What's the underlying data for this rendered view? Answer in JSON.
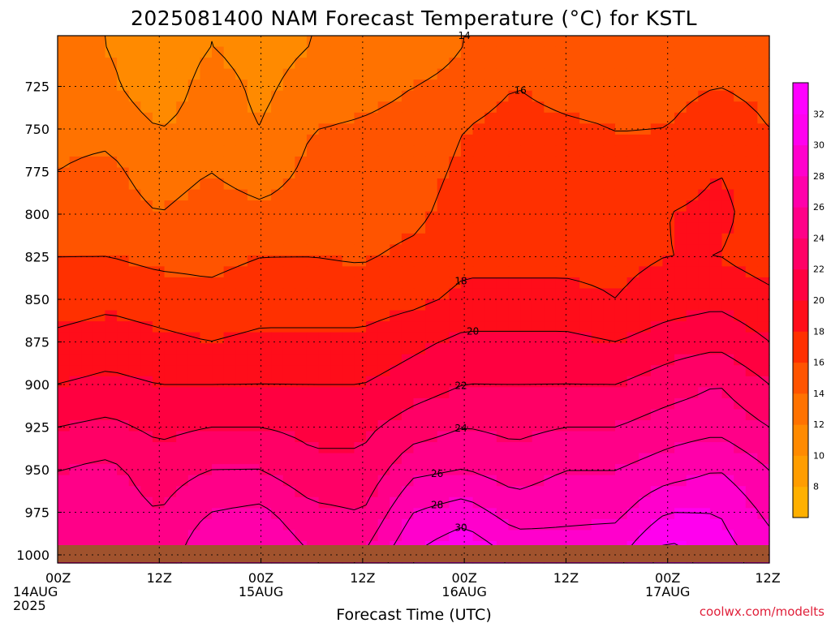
{
  "chart_data": {
    "type": "heatmap",
    "title": "2025081400 NAM Forecast Temperature (°C) for KSTL",
    "xlabel": "Forecast Time (UTC)",
    "ylabel": "",
    "credit": "coolwx.com/modelts",
    "credit_color": "#e0203a",
    "surface_color": "#a0522d",
    "x_hours": [
      0,
      12,
      24,
      36,
      48,
      60,
      72,
      84
    ],
    "x_tick_labels": [
      [
        "00Z",
        "14AUG",
        "2025"
      ],
      [
        "12Z"
      ],
      [
        "00Z",
        "15AUG"
      ],
      [
        "12Z"
      ],
      [
        "00Z",
        "16AUG"
      ],
      [
        "12Z"
      ],
      [
        "00Z",
        "17AUG"
      ],
      [
        "12Z"
      ]
    ],
    "xlim": [
      0,
      84
    ],
    "y_pressure_ticks": [
      725,
      750,
      775,
      800,
      825,
      850,
      875,
      900,
      925,
      950,
      975,
      1000
    ],
    "ylim": [
      700,
      1005
    ],
    "colorbar": {
      "levels": [
        6,
        8,
        10,
        12,
        14,
        16,
        18,
        20,
        22,
        24,
        26,
        28,
        30,
        32,
        34
      ],
      "tick_labels": [
        "8",
        "10",
        "12",
        "14",
        "16",
        "18",
        "20",
        "22",
        "24",
        "26",
        "28",
        "30",
        "32"
      ],
      "colors": [
        "#ffb000",
        "#ff9d00",
        "#ff8a00",
        "#ff7200",
        "#ff5400",
        "#ff3000",
        "#ff0d1a",
        "#ff0040",
        "#ff0066",
        "#ff0088",
        "#ff00aa",
        "#ff00cc",
        "#ff00ee",
        "#ff00ff"
      ]
    },
    "temperature_profiles": {
      "pressure_levels": [
        700,
        725,
        750,
        775,
        800,
        825,
        850,
        875,
        900,
        925,
        950,
        975,
        1000
      ],
      "hours": [
        0,
        6,
        12,
        18,
        24,
        30,
        36,
        42,
        48,
        54,
        60,
        66,
        72,
        78,
        84
      ],
      "values_by_hour": [
        [
          12,
          13,
          13.5,
          14,
          14.8,
          16,
          17,
          18.5,
          20,
          22,
          24,
          25,
          26
        ],
        [
          12,
          12.5,
          13.5,
          14.5,
          15,
          16,
          17.5,
          19,
          20.5,
          22.5,
          24.5,
          25,
          25
        ],
        [
          10,
          10.5,
          12,
          13,
          14,
          15.5,
          17,
          18.5,
          20,
          21.5,
          23,
          24,
          24.5
        ],
        [
          12,
          13,
          13,
          14,
          15,
          15.5,
          16.5,
          18,
          20,
          22,
          24,
          26,
          28
        ],
        [
          11,
          11.5,
          12,
          13,
          14.5,
          16,
          17,
          18.5,
          20,
          22,
          24,
          26.5,
          28
        ],
        [
          12,
          13,
          14,
          14.5,
          15,
          16,
          17,
          18.5,
          20,
          21.5,
          22.5,
          24.5,
          26
        ],
        [
          13,
          13.5,
          14.2,
          14.5,
          15,
          15.8,
          17,
          18.5,
          20,
          21.5,
          22.5,
          24,
          26
        ],
        [
          13,
          14,
          14.5,
          15,
          15.5,
          16.5,
          17.5,
          19.5,
          21,
          23,
          25.5,
          28,
          30
        ],
        [
          14,
          14.5,
          16,
          16.5,
          17,
          17.5,
          18.5,
          20.5,
          22,
          24,
          26,
          29,
          32
        ],
        [
          15,
          16,
          17,
          17.5,
          18,
          17.5,
          18.5,
          20.5,
          22,
          23.5,
          25,
          27,
          29.5
        ],
        [
          14,
          15,
          16.5,
          17,
          17,
          17.5,
          18.5,
          20.5,
          22,
          24,
          26,
          27.5,
          29
        ],
        [
          14,
          14.5,
          16,
          16.5,
          17,
          17.5,
          18,
          20,
          22,
          24,
          26,
          27.5,
          29.5
        ],
        [
          15,
          15.5,
          16,
          17,
          18,
          18,
          19,
          21,
          23,
          25,
          27,
          30,
          33
        ],
        [
          15,
          16,
          17,
          18,
          18.5,
          18,
          19.5,
          21.5,
          24,
          25.5,
          28,
          30,
          31
        ],
        [
          15,
          15.5,
          16,
          17,
          17,
          17,
          18.5,
          20,
          22,
          24,
          26,
          27.5,
          29
        ]
      ]
    }
  }
}
